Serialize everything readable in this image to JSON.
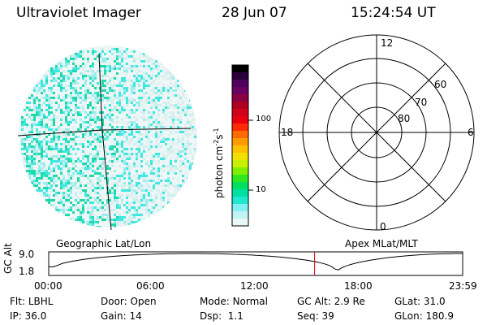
{
  "header": {
    "instrument": "Ultraviolet Imager",
    "date": "28 Jun 07",
    "time": "15:24:54 UT"
  },
  "colorbar": {
    "label_html_base": "photon cm",
    "label_exp1": "-2",
    "label_mid": "s",
    "label_exp2": "-1",
    "ticks": [
      "100",
      "10"
    ],
    "colors": [
      "#000000",
      "#2b003a",
      "#50005a",
      "#6a0060",
      "#8a0040",
      "#b00020",
      "#d0001a",
      "#e80010",
      "#ff2a00",
      "#ff6a00",
      "#ff9a00",
      "#ffc000",
      "#f0e000",
      "#c8f000",
      "#80f000",
      "#30e820",
      "#00e060",
      "#00e0a0",
      "#20e8d0",
      "#80f0f0",
      "#c0f4f4",
      "#e8f8f8"
    ]
  },
  "map_labels": {
    "geographic": "Geographic Lat/Lon",
    "apex": "Apex MLat/MLT"
  },
  "polar": {
    "mlt_labels": {
      "top": "12",
      "left": "18",
      "right": "6",
      "bottom": "0"
    },
    "lat_labels": [
      "60",
      "70",
      "80"
    ]
  },
  "timeline": {
    "axis_label": "GC Alt",
    "y_ticks": [
      "9.0",
      "1.8"
    ],
    "x_ticks": [
      "00:00",
      "06:00",
      "12:00",
      "18:00",
      "23:59"
    ],
    "current_time_frac": 0.6424
  },
  "status": {
    "flt_label": "Flt:",
    "flt_value": "LBHL",
    "door_label": "Door:",
    "door_value": "Open",
    "mode_label": "Mode:",
    "mode_value": "Normal",
    "gcalt_label": "GC Alt:",
    "gcalt_value": "2.9 Re",
    "glat_label": "GLat:",
    "glat_value": "31.0",
    "ip_label": "IP:",
    "ip_value": "36.0",
    "gain_label": "Gain:",
    "gain_value": "14",
    "dsp_label": "Dsp:",
    "dsp_value": "1.1",
    "seq_label": "Seq:",
    "seq_value": "39",
    "glon_label": "GLon:",
    "glon_value": "180.9"
  }
}
